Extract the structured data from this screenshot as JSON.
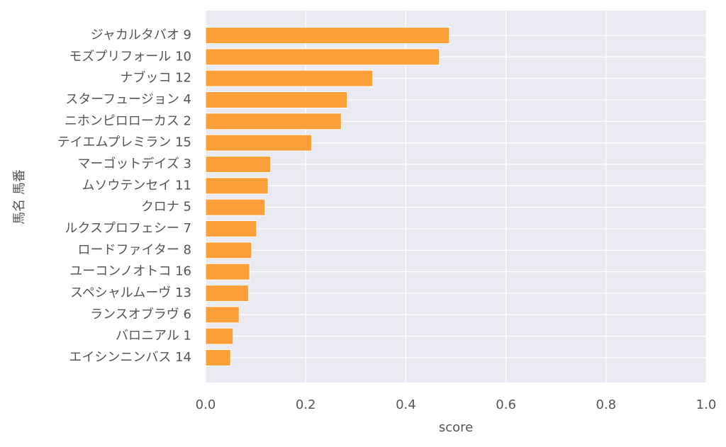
{
  "chart_data": {
    "type": "barh",
    "categories": [
      "ジャカルタバオ 9",
      "モズプリフォール 10",
      "ナブッコ 12",
      "スターフュージョン 4",
      "ニホンピロローカス 2",
      "テイエムプレミラン 15",
      "マーゴットデイズ 3",
      "ムソウテンセイ 11",
      "クロナ 5",
      "ルクスプロフェシー 7",
      "ロードファイター 8",
      "ユーコンノオトコ 16",
      "スペシャルムーヴ 13",
      "ランスオブラヴ 6",
      "バロニアル 1",
      "エイシンニンバス 14"
    ],
    "values": [
      0.487,
      0.467,
      0.334,
      0.283,
      0.271,
      0.212,
      0.13,
      0.125,
      0.119,
      0.102,
      0.092,
      0.088,
      0.086,
      0.067,
      0.055,
      0.05
    ],
    "color": "#fd9b2d",
    "xlabel": "score",
    "ylabel": "馬名 馬番",
    "xlim": [
      0,
      1
    ],
    "xticks": [
      {
        "value": 0,
        "label": "0.0"
      },
      0.2,
      0.4,
      0.6,
      0.8,
      {
        "value": 1,
        "label": "1.0"
      }
    ],
    "grid": true
  }
}
